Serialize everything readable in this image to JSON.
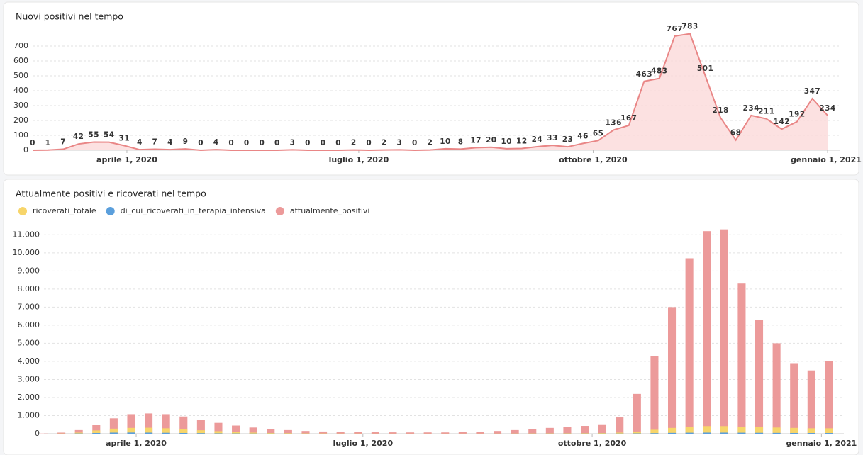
{
  "chart_data": [
    {
      "type": "area",
      "title": "Nuovi positivi nel tempo",
      "color": "#e98686",
      "fill": "#fbdada",
      "x": [
        "2020-02-24",
        "2020-03-01",
        "2020-03-07",
        "2020-03-13",
        "2020-03-19",
        "2020-03-25",
        "2020-03-31",
        "2020-04-06",
        "2020-04-12",
        "2020-04-18",
        "2020-04-24",
        "2020-04-30",
        "2020-05-06",
        "2020-05-12",
        "2020-05-18",
        "2020-05-24",
        "2020-05-30",
        "2020-06-05",
        "2020-06-11",
        "2020-06-17",
        "2020-06-23",
        "2020-06-29",
        "2020-07-05",
        "2020-07-11",
        "2020-07-17",
        "2020-07-23",
        "2020-07-29",
        "2020-08-04",
        "2020-08-10",
        "2020-08-16",
        "2020-08-22",
        "2020-08-28",
        "2020-09-03",
        "2020-09-09",
        "2020-09-15",
        "2020-09-21",
        "2020-09-27",
        "2020-10-03",
        "2020-10-09",
        "2020-10-15",
        "2020-10-21",
        "2020-10-27",
        "2020-11-02",
        "2020-11-08",
        "2020-11-14",
        "2020-11-20",
        "2020-11-26",
        "2020-12-02",
        "2020-12-08",
        "2020-12-14",
        "2020-12-20",
        "2020-12-26",
        "2021-01-01"
      ],
      "values": [
        0,
        1,
        7,
        42,
        55,
        54,
        31,
        4,
        7,
        4,
        9,
        0,
        4,
        0,
        0,
        0,
        0,
        3,
        0,
        0,
        0,
        2,
        0,
        2,
        3,
        0,
        2,
        10,
        8,
        17,
        20,
        10,
        12,
        24,
        33,
        23,
        46,
        65,
        136,
        167,
        463,
        483,
        767,
        783,
        501,
        218,
        68,
        234,
        211,
        142,
        192,
        347,
        234
      ],
      "xlim": [
        "2020-02-24",
        "2021-01-06"
      ],
      "xticks": [
        {
          "value": "2020-04-01",
          "label": "aprile 1, 2020"
        },
        {
          "value": "2020-07-01",
          "label": "luglio 1, 2020"
        },
        {
          "value": "2020-10-01",
          "label": "ottobre 1, 2020"
        },
        {
          "value": "2021-01-01",
          "label": "gennaio 1, 2021"
        }
      ],
      "ylim": [
        0,
        800
      ],
      "yticks": [
        0,
        100,
        200,
        300,
        400,
        500,
        600,
        700
      ],
      "grid": true
    },
    {
      "type": "bar",
      "title": "Attualmente positivi e ricoverati nel tempo",
      "x": [
        "2020-02-24",
        "2020-03-02",
        "2020-03-09",
        "2020-03-16",
        "2020-03-23",
        "2020-03-30",
        "2020-04-06",
        "2020-04-13",
        "2020-04-20",
        "2020-04-27",
        "2020-05-04",
        "2020-05-11",
        "2020-05-18",
        "2020-05-25",
        "2020-06-01",
        "2020-06-08",
        "2020-06-15",
        "2020-06-22",
        "2020-06-29",
        "2020-07-06",
        "2020-07-13",
        "2020-07-20",
        "2020-07-27",
        "2020-08-03",
        "2020-08-10",
        "2020-08-17",
        "2020-08-24",
        "2020-08-31",
        "2020-09-07",
        "2020-09-14",
        "2020-09-21",
        "2020-09-28",
        "2020-10-05",
        "2020-10-12",
        "2020-10-19",
        "2020-10-26",
        "2020-11-02",
        "2020-11-09",
        "2020-11-16",
        "2020-11-23",
        "2020-11-30",
        "2020-12-07",
        "2020-12-14",
        "2020-12-21",
        "2020-12-28",
        "2021-01-04"
      ],
      "series": [
        {
          "name": "ricoverati_totale",
          "color": "#f7d56a",
          "values": [
            0,
            10,
            60,
            180,
            280,
            320,
            330,
            300,
            250,
            190,
            140,
            90,
            60,
            40,
            30,
            20,
            15,
            10,
            8,
            6,
            5,
            5,
            5,
            5,
            5,
            6,
            8,
            12,
            18,
            22,
            26,
            30,
            38,
            60,
            120,
            220,
            320,
            390,
            420,
            420,
            390,
            360,
            340,
            320,
            300,
            300
          ]
        },
        {
          "name": "di_cui_ricoverati_in_terapia_intensiva",
          "color": "#5b9fdc",
          "values": [
            0,
            2,
            15,
            40,
            60,
            65,
            60,
            50,
            40,
            30,
            20,
            15,
            10,
            6,
            4,
            3,
            2,
            2,
            1,
            1,
            1,
            1,
            1,
            1,
            1,
            1,
            2,
            3,
            4,
            5,
            6,
            6,
            7,
            10,
            18,
            30,
            45,
            55,
            60,
            60,
            55,
            50,
            45,
            40,
            38,
            38
          ]
        },
        {
          "name": "attualmente_positivi",
          "color": "#ec9a9a",
          "values": [
            10,
            60,
            200,
            500,
            850,
            1080,
            1120,
            1080,
            950,
            780,
            600,
            450,
            340,
            260,
            200,
            150,
            120,
            100,
            90,
            80,
            75,
            70,
            70,
            70,
            80,
            110,
            150,
            200,
            260,
            320,
            380,
            430,
            520,
            900,
            2200,
            4300,
            7000,
            9700,
            11200,
            11300,
            8300,
            6300,
            5000,
            3900,
            3500,
            4000
          ]
        }
      ],
      "xlim": [
        "2020-02-24",
        "2021-01-10"
      ],
      "xticks": [
        {
          "value": "2020-04-01",
          "label": "aprile 1, 2020"
        },
        {
          "value": "2020-07-01",
          "label": "luglio 1, 2020"
        },
        {
          "value": "2020-10-01",
          "label": "ottobre 1, 2020"
        },
        {
          "value": "2021-01-01",
          "label": "gennaio 1, 2021"
        }
      ],
      "ylim": [
        0,
        11600
      ],
      "yticks": [
        0,
        {
          "value": 1000,
          "label": "1.000"
        },
        {
          "value": 2000,
          "label": "2.000"
        },
        {
          "value": 3000,
          "label": "3.000"
        },
        {
          "value": 4000,
          "label": "4.000"
        },
        {
          "value": 5000,
          "label": "5.000"
        },
        {
          "value": 6000,
          "label": "6.000"
        },
        {
          "value": 7000,
          "label": "7.000"
        },
        {
          "value": 8000,
          "label": "8.000"
        },
        {
          "value": 9000,
          "label": "9.000"
        },
        {
          "value": 10000,
          "label": "10.000"
        },
        {
          "value": 11000,
          "label": "11.000"
        }
      ],
      "grid": true
    }
  ]
}
